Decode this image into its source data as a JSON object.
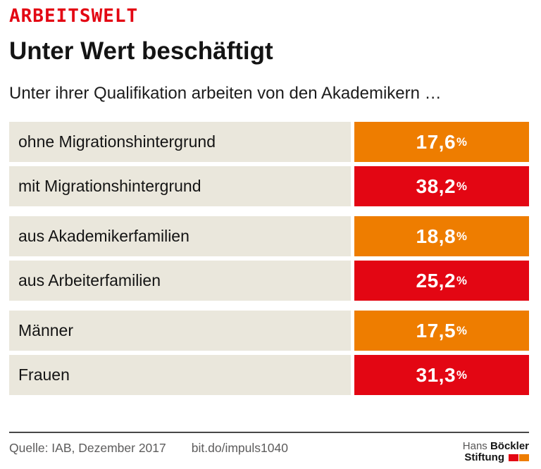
{
  "kicker": "ARBEITSWELT",
  "title": "Unter Wert beschäftigt",
  "subtitle": "Unter ihrer Qualifikation arbeiten von den Akademikern …",
  "colors": {
    "brand_red": "#e30613",
    "orange": "#ee7d00",
    "label_bg": "#eae7dc",
    "footer_text": "#5d5c5c"
  },
  "chart_data": {
    "type": "bar",
    "title": "Unter Wert beschäftigt",
    "subtitle": "Unter ihrer Qualifikation arbeiten von den Akademikern …",
    "unit": "%",
    "layout_note": "three groups of paired rows; value blocks equal width (not scaled), orange = first row of pair, red = second row",
    "categories": [
      "ohne Migrationshintergrund",
      "mit Migrationshintergrund",
      "aus Akademikerfamilien",
      "aus Arbeiterfamilien",
      "Männer",
      "Frauen"
    ],
    "values": [
      17.6,
      38.2,
      18.8,
      25.2,
      17.5,
      31.3
    ],
    "groups": [
      {
        "rows": [
          {
            "label": "ohne Migrationshintergrund",
            "value": 17.6,
            "display": "17,6",
            "color": "#ee7d00"
          },
          {
            "label": "mit Migrationshintergrund",
            "value": 38.2,
            "display": "38,2",
            "color": "#e30613"
          }
        ]
      },
      {
        "rows": [
          {
            "label": "aus Akademikerfamilien",
            "value": 18.8,
            "display": "18,8",
            "color": "#ee7d00"
          },
          {
            "label": "aus Arbeiterfamilien",
            "value": 25.2,
            "display": "25,2",
            "color": "#e30613"
          }
        ]
      },
      {
        "rows": [
          {
            "label": "Männer",
            "value": 17.5,
            "display": "17,5",
            "color": "#ee7d00"
          },
          {
            "label": "Frauen",
            "value": 31.3,
            "display": "31,3",
            "color": "#e30613"
          }
        ]
      }
    ]
  },
  "footer": {
    "source": "Quelle: IAB, Dezember 2017",
    "link": "bit.do/impuls1040",
    "logo": {
      "line1_light": "Hans",
      "line1_bold": "Böckler",
      "line2_bold": "Stiftung",
      "square1_color": "#e30613",
      "square2_color": "#ee7d00"
    }
  }
}
